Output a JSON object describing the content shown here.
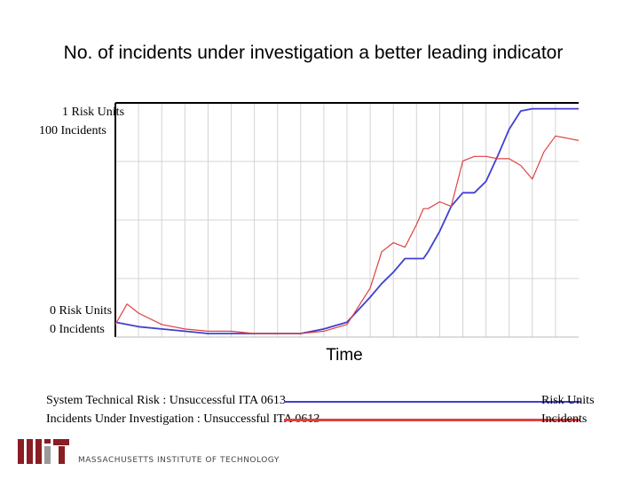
{
  "chart_data": {
    "type": "line",
    "title": "No. of incidents under investigation a better leading indicator",
    "xlabel": "Time",
    "x_ticks_count": 20,
    "y_axis_labels": {
      "top_risk": "1 Risk Units",
      "top_incidents": "100 Incidents",
      "bottom_risk": "0 Risk Units",
      "bottom_incidents": "0 Incidents"
    },
    "y_left": {
      "label": "Risk Units",
      "ylim": [
        0,
        1
      ]
    },
    "y_right": {
      "label": "Incidents",
      "ylim": [
        0,
        100
      ]
    },
    "x": [
      0,
      0.5,
      1,
      2,
      3,
      4,
      5,
      6,
      7,
      8,
      9,
      10,
      11,
      11.5,
      12,
      12.5,
      13,
      13.3,
      13.5,
      14,
      14.5,
      15,
      15.5,
      16,
      16.5,
      17,
      17.5,
      18,
      18.5,
      19,
      19.5,
      20
    ],
    "series": [
      {
        "name": "System Technical Risk : Unsuccessful ITA 0613",
        "unit": "Risk Units",
        "color": "#4040d0",
        "values": [
          0.05,
          0.04,
          0.03,
          0.02,
          0.01,
          0.0,
          0.0,
          0.0,
          0.0,
          0.0,
          0.02,
          0.05,
          0.16,
          0.22,
          0.27,
          0.33,
          0.33,
          0.33,
          0.36,
          0.45,
          0.56,
          0.62,
          0.62,
          0.67,
          0.78,
          0.9,
          0.98,
          0.99,
          0.99,
          0.99,
          0.99,
          0.99
        ]
      },
      {
        "name": "Incidents Under Investigation : Unsuccessful ITA 0613",
        "unit": "Incidents",
        "color": "#e04040",
        "values": [
          4,
          13,
          9,
          4,
          2,
          1,
          1,
          0,
          0,
          0,
          1,
          4,
          20,
          36,
          40,
          38,
          48,
          55,
          55,
          58,
          56,
          76,
          78,
          78,
          77,
          77,
          74,
          68,
          80,
          87,
          86,
          85
        ]
      }
    ],
    "legend": {
      "placement": "bottom"
    }
  },
  "logo": {
    "text": "MASSACHUSETTS INSTITUTE OF TECHNOLOGY",
    "color": "#8a1d24"
  }
}
